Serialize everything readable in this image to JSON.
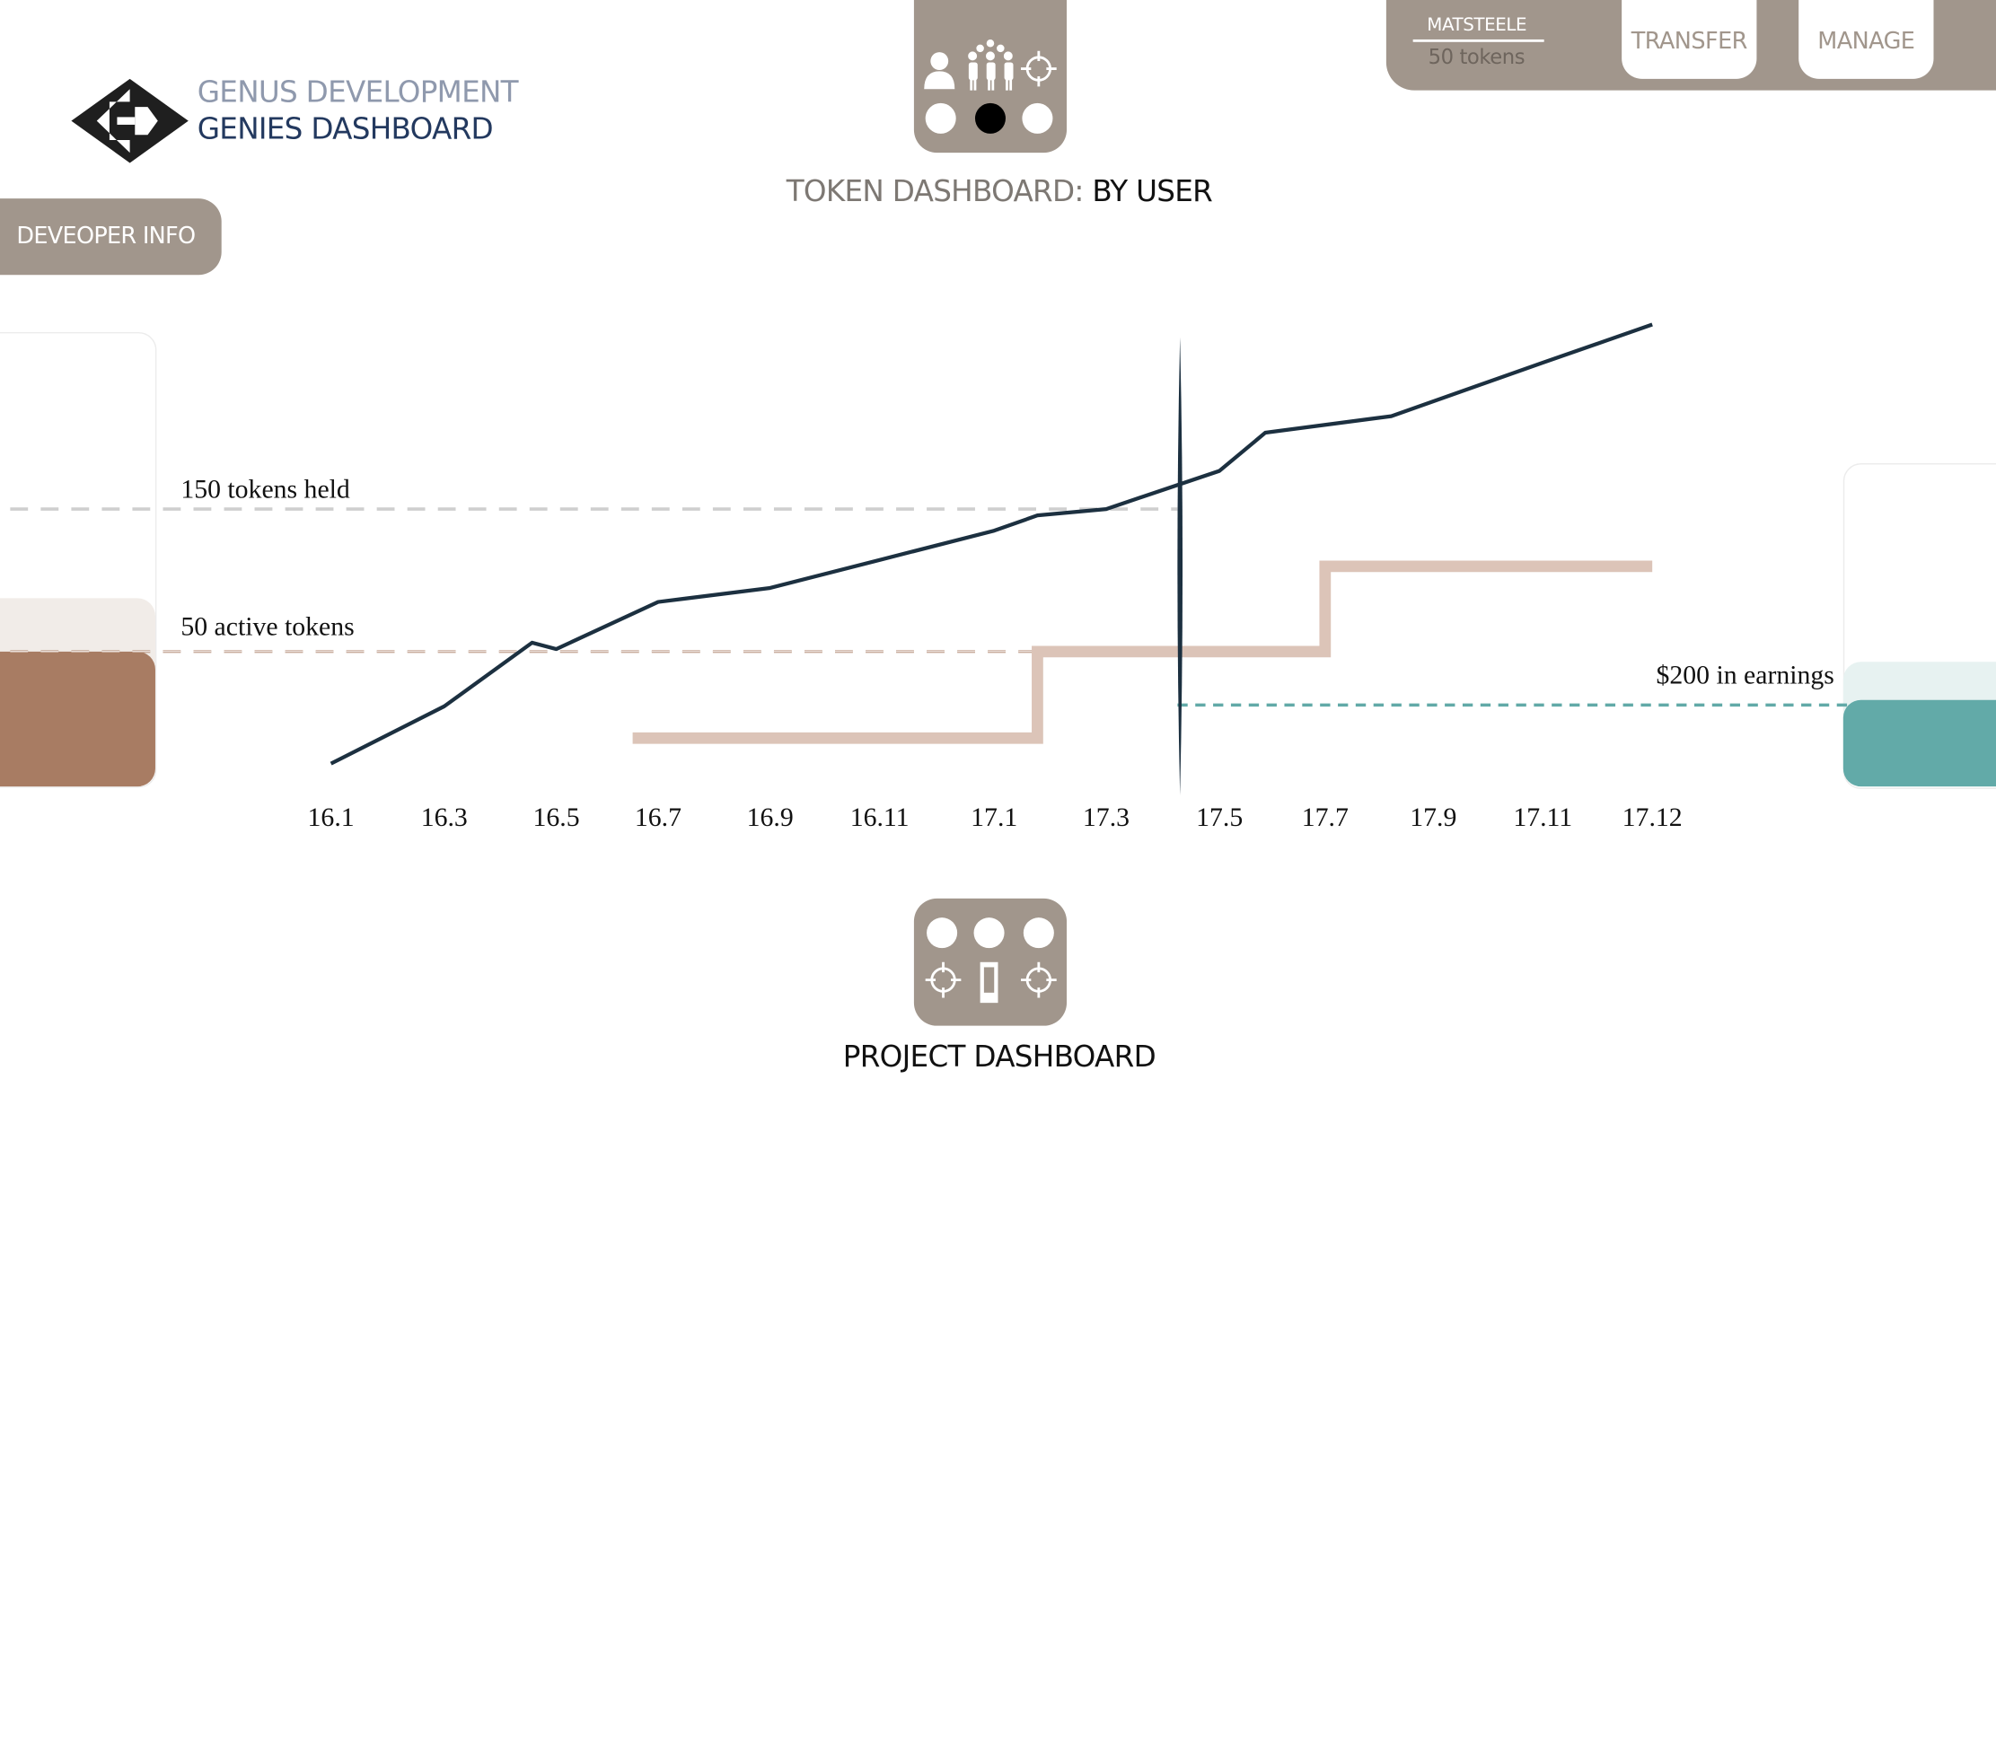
{
  "header": {
    "brand_line1": "GENUS DEVELOPMENT",
    "brand_line2": "GENIES DASHBOARD"
  },
  "sidebar": {
    "developer_info_label": "DEVEOPER INFO"
  },
  "account": {
    "username": "MATSTEELE",
    "tokens": "50 tokens"
  },
  "nav": {
    "transfer_label": "TRANSFER",
    "manage_label": "MANAGE"
  },
  "token_dashboard": {
    "title_prefix": "TOKEN DASHBOARD:",
    "title_mode": "BY USER"
  },
  "project_dashboard": {
    "title": "PROJECT DASHBOARD"
  },
  "icons": {
    "user_panel": [
      "user-icon",
      "group-icon",
      "crosshair-icon",
      "dot-icon",
      "dot-selected-icon",
      "dot-icon"
    ],
    "project_panel": [
      "dot-icon",
      "dot-icon",
      "dot-icon",
      "crosshair-icon",
      "phone-icon",
      "crosshair-icon"
    ]
  },
  "colors": {
    "panel": "#a1968c",
    "navy_line": "#1c3040",
    "active_tokens": "#a87c63",
    "active_tokens_step": "#dcc4b8",
    "earnings": "#62aaa8",
    "held_dashed": "#cfcfcf",
    "brand_light": "#8f99ad",
    "brand_dark": "#23395f"
  },
  "chart_data": {
    "type": "line",
    "categories": [
      "16.1",
      "16.3",
      "16.5",
      "16.7",
      "16.9",
      "16.11",
      "17.1",
      "17.3",
      "17.5",
      "17.7",
      "17.9",
      "17.11",
      "17.12"
    ],
    "current_marker": "17.5",
    "annotations": {
      "held": "150 tokens held",
      "active": "50 active tokens",
      "earnings": "$200 in earnings"
    },
    "series": [
      {
        "key": "tokens_held",
        "color": "#1c3040",
        "points": [
          [
            "16.1",
            0
          ],
          [
            "16.3",
            45
          ],
          [
            "16.4",
            95
          ],
          [
            "16.5",
            90
          ],
          [
            "16.7",
            127
          ],
          [
            "16.9",
            138
          ],
          [
            "16.11",
            160
          ],
          [
            "17.1",
            183
          ],
          [
            "17.2",
            195
          ],
          [
            "17.3",
            200
          ],
          [
            "17.5",
            230
          ],
          [
            "17.6",
            260
          ],
          [
            "17.8",
            273
          ],
          [
            "17.11",
            315
          ],
          [
            "17.12",
            345
          ]
        ]
      },
      {
        "key": "active_tokens",
        "color": "#dcc4b8",
        "step": true,
        "points": [
          [
            "16.6",
            20
          ],
          [
            "17.2",
            20
          ],
          [
            "17.2",
            88
          ],
          [
            "17.7",
            88
          ],
          [
            "17.7",
            155
          ],
          [
            "17.12",
            155
          ]
        ]
      }
    ],
    "reference_lines": [
      {
        "key": "held",
        "value": 200,
        "color": "#cfcfcf"
      },
      {
        "key": "active",
        "value": 88,
        "color": "#a87c63"
      },
      {
        "key": "earnings",
        "value": 50,
        "color": "#62aaa8"
      }
    ]
  }
}
